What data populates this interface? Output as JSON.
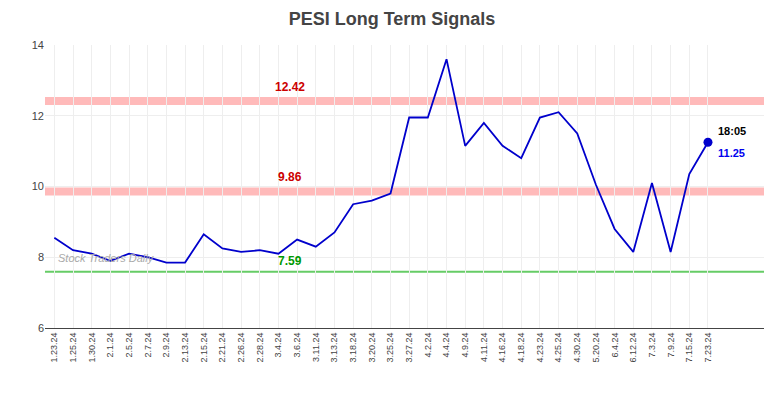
{
  "chart_data": {
    "type": "line",
    "title": "PESI Long Term Signals",
    "categories": [
      "1.23.24",
      "1.25.24",
      "1.30.24",
      "2.1.24",
      "2.5.24",
      "2.7.24",
      "2.9.24",
      "2.13.24",
      "2.15.24",
      "2.21.24",
      "2.26.24",
      "2.28.24",
      "3.4.24",
      "3.6.24",
      "3.11.24",
      "3.13.24",
      "3.18.24",
      "3.20.24",
      "3.25.24",
      "3.27.24",
      "4.2.24",
      "4.4.24",
      "4.9.24",
      "4.11.24",
      "4.16.24",
      "4.18.24",
      "4.23.24",
      "4.25.24",
      "4.30.24",
      "5.20.24",
      "6.4.24",
      "6.12.24",
      "7.3.24",
      "7.9.24",
      "7.15.24",
      "7.23.24"
    ],
    "values": [
      8.55,
      8.2,
      8.1,
      7.9,
      8.1,
      8.0,
      7.85,
      7.85,
      8.65,
      8.25,
      8.15,
      8.2,
      8.1,
      8.5,
      8.3,
      8.7,
      9.5,
      9.6,
      9.8,
      11.95,
      11.95,
      13.6,
      11.15,
      11.8,
      11.15,
      10.8,
      11.95,
      12.1,
      11.5,
      10.05,
      8.8,
      8.15,
      10.1,
      8.15,
      10.35,
      11.25
    ],
    "color": "#0000cc",
    "marker": "circle",
    "reference_lines": [
      {
        "value": 12.42,
        "label": "12.42",
        "color": "#ffaaaa",
        "label_color": "#cc0000"
      },
      {
        "value": 9.86,
        "label": "9.86",
        "color": "#ffaaaa",
        "label_color": "#cc0000"
      },
      {
        "value": 7.59,
        "label": "7.59",
        "color": "#66cc66",
        "label_color": "#009900"
      }
    ],
    "annotations": [
      {
        "text": "18:05",
        "color": "#000000"
      },
      {
        "text": "11.25",
        "color": "#0000ee"
      }
    ],
    "watermark": {
      "text": "Stock Traders Daily",
      "color": "#aaaaaa"
    },
    "ylim": [
      6,
      14
    ],
    "yticks": [
      6,
      8,
      10,
      12,
      14
    ],
    "grid": true
  }
}
